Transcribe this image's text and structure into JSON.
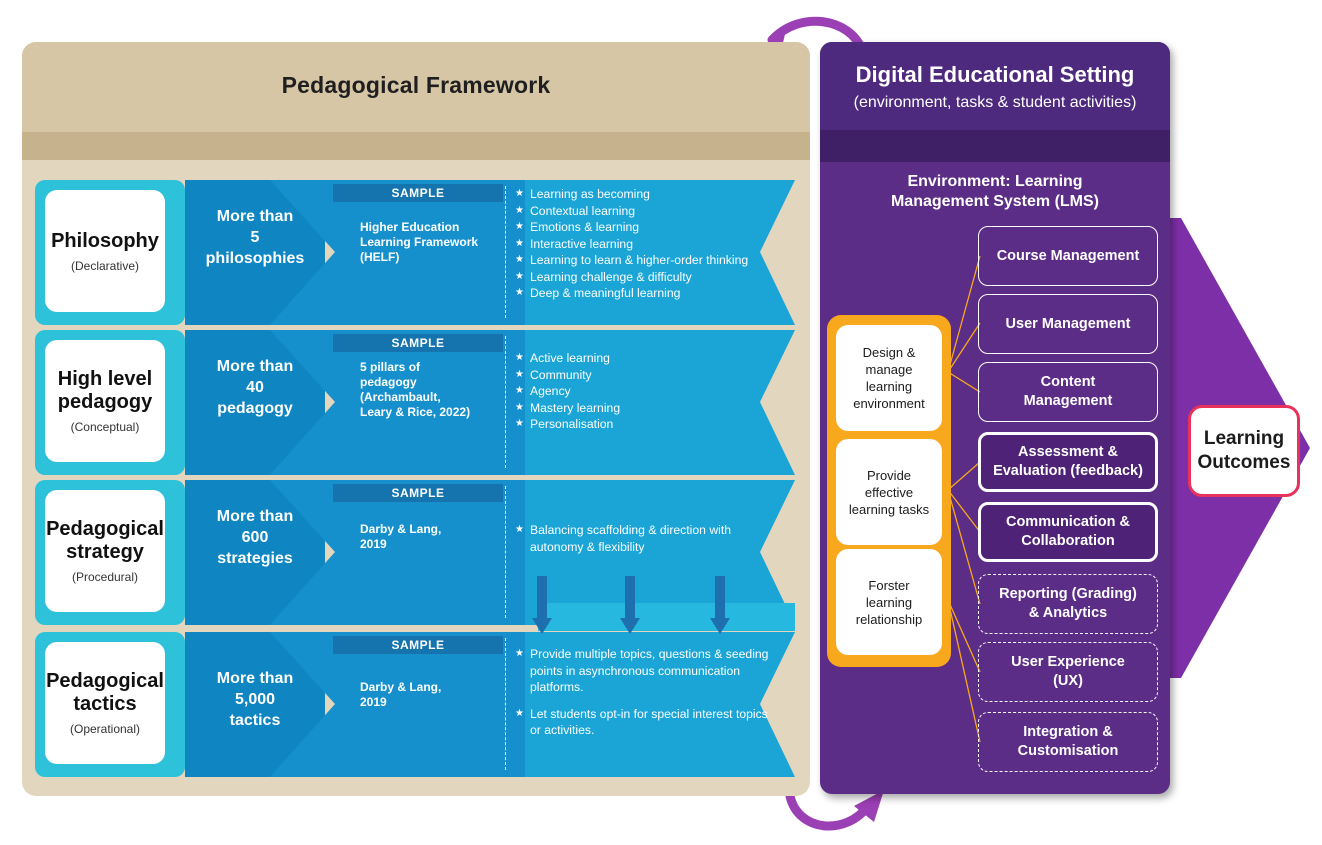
{
  "framework": {
    "title": "Pedagogical Framework",
    "rows": [
      {
        "title": "Philosophy",
        "subtitle": "(Declarative)",
        "count": "More than\n5\nphilosophies",
        "sample_label": "SAMPLE",
        "sample": "Higher Education\nLearning Framework\n(HELF)",
        "bullets": [
          "Learning as becoming",
          "Contextual learning",
          "Emotions & learning",
          "Interactive learning",
          "Learning to learn & higher-order thinking",
          "Learning challenge & difficulty",
          "Deep & meaningful learning"
        ]
      },
      {
        "title": "High level\npedagogy",
        "subtitle": "(Conceptual)",
        "count": "More than\n40\npedagogy",
        "sample_label": "SAMPLE",
        "sample": "5 pillars of\npedagogy\n(Archambault,\nLeary & Rice, 2022)",
        "bullets": [
          "Active learning",
          "Community",
          "Agency",
          "Mastery learning",
          "Personalisation"
        ]
      },
      {
        "title": "Pedagogical\nstrategy",
        "subtitle": "(Procedural)",
        "count": "More than\n600\nstrategies",
        "sample_label": "SAMPLE",
        "sample": "Darby & Lang,\n2019",
        "bullets": [
          "Balancing scaffolding & direction with autonomy & flexibility"
        ]
      },
      {
        "title": "Pedagogical\ntactics",
        "subtitle": "(Operational)",
        "count": "More than\n5,000\ntactics",
        "sample_label": "SAMPLE",
        "sample": "Darby & Lang,\n2019",
        "bullets": [
          "Provide multiple topics, questions & seeding points in asynchronous communication platforms.",
          "Let students opt-in for special interest topics or activities."
        ]
      }
    ]
  },
  "setting": {
    "title": "Digital Educational Setting",
    "subtitle": "(environment, tasks & student activities)",
    "environment": "Environment: Learning\nManagement System (LMS)",
    "tasks": [
      "Design &\nmanage\nlearning\nenvironment",
      "Provide\neffective\nlearning tasks",
      "Forster\nlearning\nrelationship"
    ],
    "lms_components": [
      {
        "label": "Course Management",
        "style": "solid"
      },
      {
        "label": "User Management",
        "style": "solid"
      },
      {
        "label": "Content\nManagement",
        "style": "solid"
      },
      {
        "label": "Assessment &\nEvaluation (feedback)",
        "style": "thick"
      },
      {
        "label": "Communication &\nCollaboration",
        "style": "thick"
      },
      {
        "label": "Reporting (Grading)\n& Analytics",
        "style": "dashed"
      },
      {
        "label": "User Experience\n(UX)",
        "style": "dashed"
      },
      {
        "label": "Integration &\nCustomisation",
        "style": "dashed"
      }
    ]
  },
  "outcome": {
    "label": "Learning\nOutcomes"
  },
  "colors": {
    "beige": "#e3d6bf",
    "cyan": "#2ec1da",
    "blue": "#1aa5d6",
    "purple": "#5b2d86",
    "orange": "#f7a81c",
    "outcome_border": "#e8315b",
    "cycle_arrow": "#9b3fb5"
  }
}
